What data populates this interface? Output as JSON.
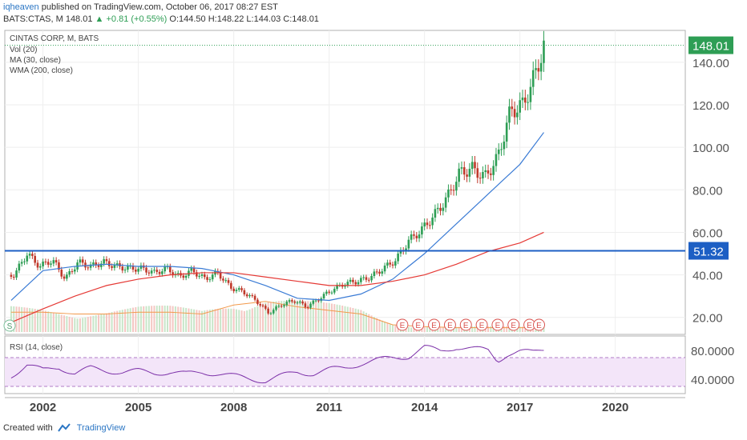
{
  "header": {
    "user": "iqheaven",
    "published": "published on TradingView.com, October 06, 2017 08:27 EST",
    "symbol_line_prefix": "BATS:CTAS, M  148.01",
    "change": "+0.81 (+0.55%)",
    "ohlc": "O:144.50 H:148.22 L:144.03 C:148.01"
  },
  "legend": {
    "title": "CINTAS CORP, M, BATS",
    "vol": "Vol (20)",
    "ma": "MA (30, close)",
    "wma": "WMA (200, close)",
    "rsi": "RSI (14, close)"
  },
  "footer": {
    "created": "Created with",
    "brand": "TradingView"
  },
  "colors": {
    "up": "#2e9e55",
    "down": "#c0392b",
    "ma": "#3a7bd5",
    "wma": "#e53935",
    "volma": "#f2994a",
    "hline": "#1d5fc4",
    "rsi": "#7b2fa8",
    "rsiband": "#f3e5f9"
  },
  "chart_data": {
    "type": "line",
    "series": [
      {
        "name": "price",
        "x": [
          2001.1,
          2001.5,
          2001.9,
          2002.3,
          2002.7,
          2003.1,
          2003.5,
          2003.9,
          2004.3,
          2004.7,
          2005.1,
          2005.5,
          2005.9,
          2006.3,
          2006.7,
          2007.1,
          2007.5,
          2007.9,
          2008.3,
          2008.7,
          2009.1,
          2009.5,
          2009.9,
          2010.3,
          2010.7,
          2011.1,
          2011.5,
          2011.9,
          2012.3,
          2012.7,
          2013.1,
          2013.5,
          2013.9,
          2014.3,
          2014.7,
          2015.1,
          2015.5,
          2015.9,
          2016.3,
          2016.7,
          2017.1,
          2017.5,
          2017.75
        ],
        "y": [
          40,
          50,
          44,
          47,
          38,
          46,
          44,
          46,
          44,
          43,
          43,
          41,
          43,
          39,
          42,
          38,
          41,
          34,
          32,
          28,
          22,
          26,
          28,
          25,
          29,
          33,
          36,
          37,
          39,
          43,
          47,
          56,
          61,
          68,
          76,
          88,
          90,
          86,
          95,
          117,
          120,
          135,
          148.01
        ]
      },
      {
        "name": "MA (30, close)",
        "x": [
          2001.0,
          2002.0,
          2003.0,
          2004.0,
          2005.0,
          2006.0,
          2007.0,
          2008.0,
          2009.0,
          2010.0,
          2011.0,
          2012.0,
          2013.0,
          2014.0,
          2015.0,
          2016.0,
          2017.0,
          2017.75
        ],
        "y": [
          28,
          42,
          44,
          45,
          44,
          44,
          43,
          40,
          35,
          29,
          28,
          31,
          38,
          50,
          64,
          78,
          92,
          107
        ]
      },
      {
        "name": "WMA (200, close)",
        "x": [
          2000.9,
          2002.0,
          2003.0,
          2004.0,
          2005.0,
          2006.0,
          2007.0,
          2008.0,
          2009.0,
          2010.0,
          2011.0,
          2012.0,
          2013.0,
          2014.0,
          2015.0,
          2016.0,
          2017.0,
          2017.75
        ],
        "y": [
          17,
          24,
          30,
          35,
          38,
          40,
          41,
          41,
          39,
          37,
          35,
          35,
          37,
          40,
          45,
          51,
          55,
          60
        ]
      },
      {
        "name": "RSI (14, close)",
        "x": [
          2001.0,
          2001.5,
          2002.0,
          2002.5,
          2003.0,
          2003.5,
          2004.0,
          2004.5,
          2005.0,
          2005.5,
          2006.0,
          2006.5,
          2007.0,
          2007.5,
          2008.0,
          2008.5,
          2009.0,
          2009.4,
          2010.0,
          2010.5,
          2011.0,
          2011.5,
          2012.0,
          2012.5,
          2013.0,
          2013.5,
          2014.0,
          2014.5,
          2015.0,
          2015.5,
          2016.0,
          2016.3,
          2016.6,
          2017.0,
          2017.4,
          2017.75
        ],
        "y": [
          45,
          60,
          52,
          57,
          48,
          55,
          52,
          50,
          51,
          49,
          50,
          47,
          50,
          48,
          44,
          41,
          38,
          43,
          50,
          48,
          53,
          56,
          62,
          66,
          70,
          72,
          84,
          79,
          85,
          82,
          80,
          66,
          75,
          78,
          77,
          82
        ]
      }
    ],
    "volume": [
      {
        "x": 2002.0,
        "v": 0.55
      },
      {
        "x": 2003.0,
        "v": 0.5
      },
      {
        "x": 2004.0,
        "v": 0.5
      },
      {
        "x": 2005.0,
        "v": 0.55
      },
      {
        "x": 2006.0,
        "v": 0.55
      },
      {
        "x": 2007.0,
        "v": 0.5
      },
      {
        "x": 2008.0,
        "v": 0.75
      },
      {
        "x": 2009.0,
        "v": 0.85
      },
      {
        "x": 2010.0,
        "v": 0.7
      },
      {
        "x": 2011.0,
        "v": 0.6
      },
      {
        "x": 2012.0,
        "v": 0.5
      },
      {
        "x": 2013.0,
        "v": 0.2
      },
      {
        "x": 2014.0,
        "v": 0.15
      },
      {
        "x": 2015.0,
        "v": 0.12
      },
      {
        "x": 2016.0,
        "v": 0.12
      },
      {
        "x": 2017.0,
        "v": 0.12
      }
    ],
    "horizontal_line": 51.32,
    "last_price": 148.01,
    "price_label": "148.01",
    "line_label": "51.32",
    "y_ticks": [
      "20.00",
      "40.00",
      "60.00",
      "80.00",
      "100.00",
      "120.00",
      "140.00"
    ],
    "y_tick_values": [
      20,
      40,
      60,
      80,
      100,
      120,
      140
    ],
    "x_ticks": [
      "2002",
      "2005",
      "2008",
      "2011",
      "2014",
      "2017",
      "2020"
    ],
    "x_tick_values": [
      2002,
      2005,
      2008,
      2011,
      2014,
      2017,
      2020
    ],
    "rsi_ticks": [
      "80.0000",
      "40.0000"
    ],
    "rsi_tick_values": [
      80,
      40
    ],
    "rsi_band": [
      30,
      70
    ],
    "earnings_marker": "E",
    "earnings_x": [
      2013.3,
      2013.8,
      2014.3,
      2014.8,
      2015.3,
      2015.8,
      2016.3,
      2016.8,
      2017.3,
      2017.6
    ],
    "split_marker": "S",
    "xlim": [
      2000.8,
      2022.2
    ],
    "ylim": [
      12,
      155
    ],
    "rsi_lim": [
      20,
      100
    ]
  }
}
